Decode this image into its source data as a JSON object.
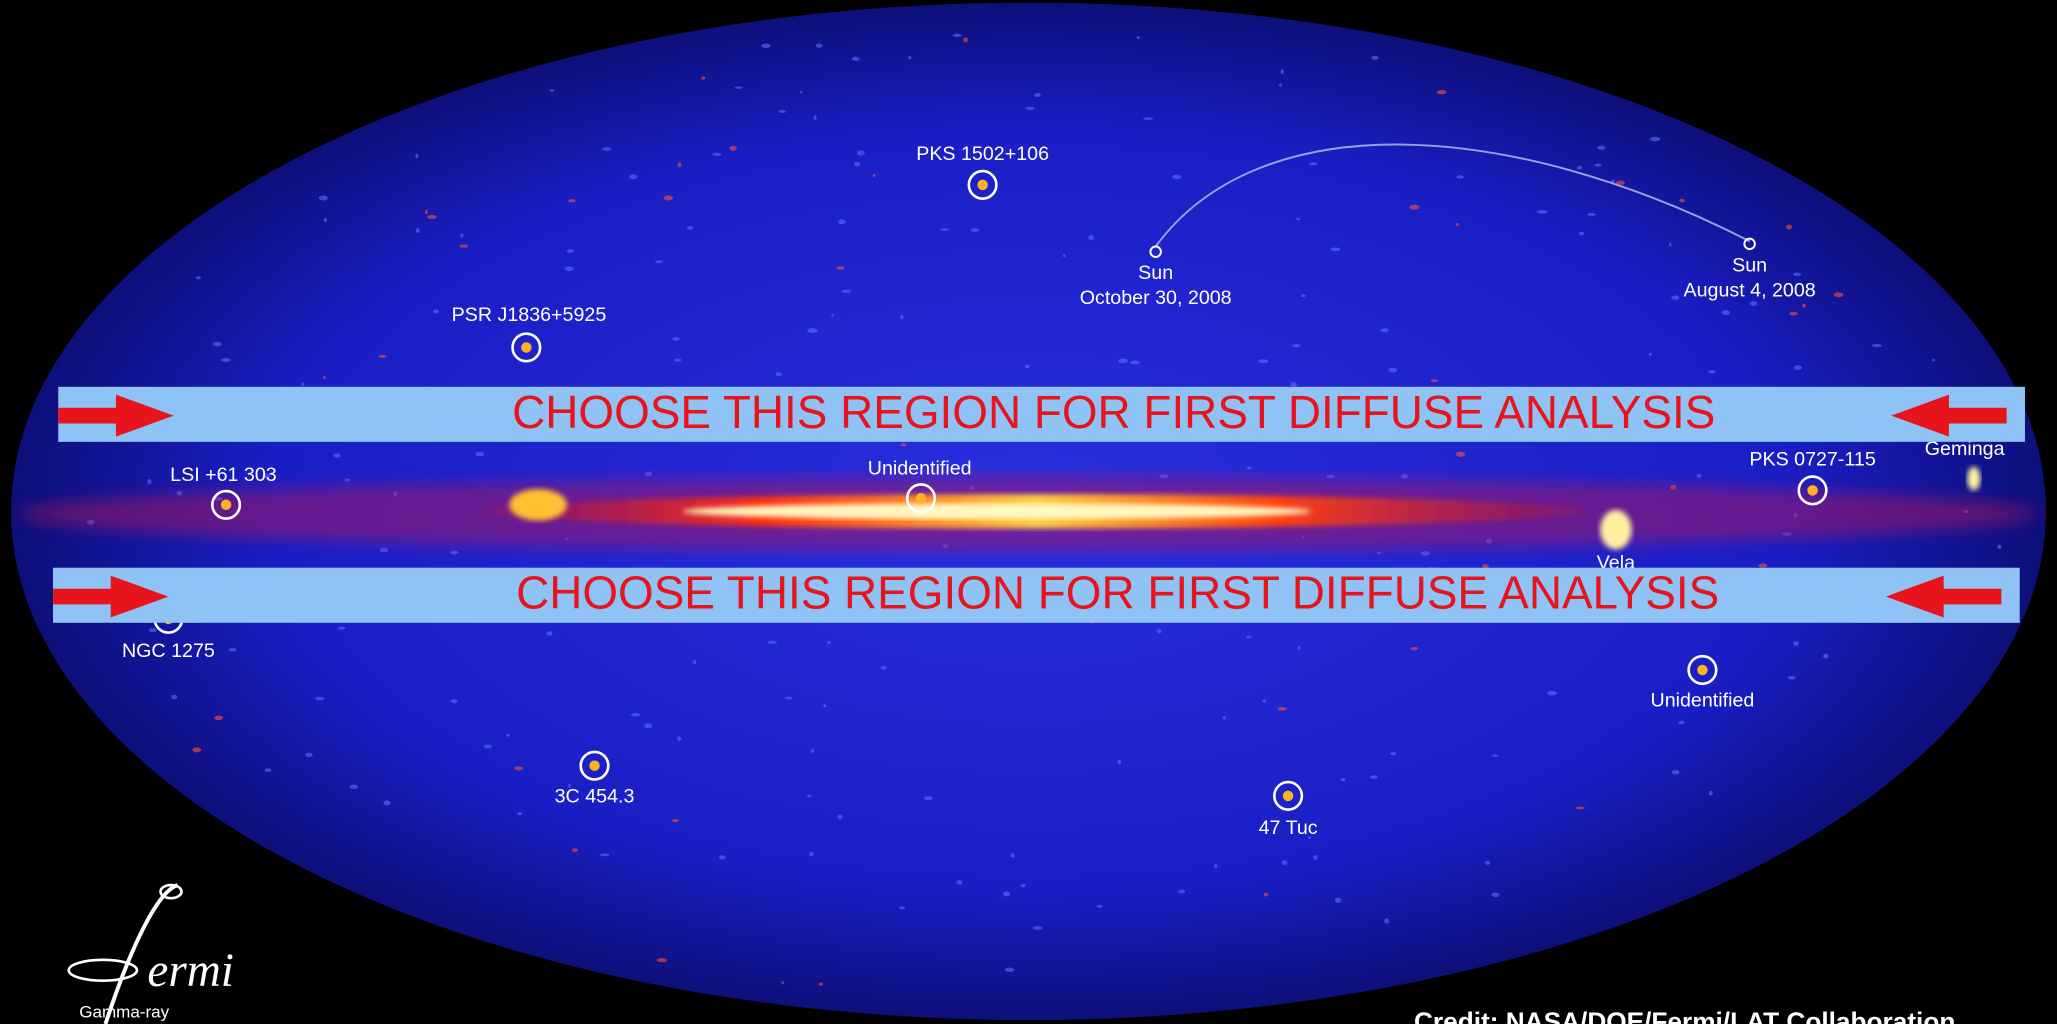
{
  "sources": [
    {
      "label": "PKS 1502+106"
    },
    {
      "label": "PSR J1836+5925"
    },
    {
      "label": "LSI +61 303"
    },
    {
      "label": "Unidentified"
    },
    {
      "label": "PKS 0727-115"
    },
    {
      "label": "Geminga"
    },
    {
      "label": "Vela"
    },
    {
      "label": "NGC 1275"
    },
    {
      "label": "Unidentified"
    },
    {
      "label": "3C 454.3"
    },
    {
      "label": "47 Tuc"
    }
  ],
  "sun_positions": [
    {
      "lines": [
        "Sun",
        "October 30, 2008"
      ]
    },
    {
      "lines": [
        "Sun",
        "August 4, 2008"
      ]
    }
  ],
  "banners": [
    {
      "text": "CHOOSE THIS REGION FOR FIRST DIFFUSE ANALYSIS"
    },
    {
      "text": "CHOOSE THIS REGION FOR FIRST DIFFUSE ANALYSIS"
    }
  ],
  "logo": {
    "name": "ermi",
    "subtitle": "Gamma-ray"
  },
  "credit": "Credit: NASA/DOE/Fermi/LAT Collaboration"
}
